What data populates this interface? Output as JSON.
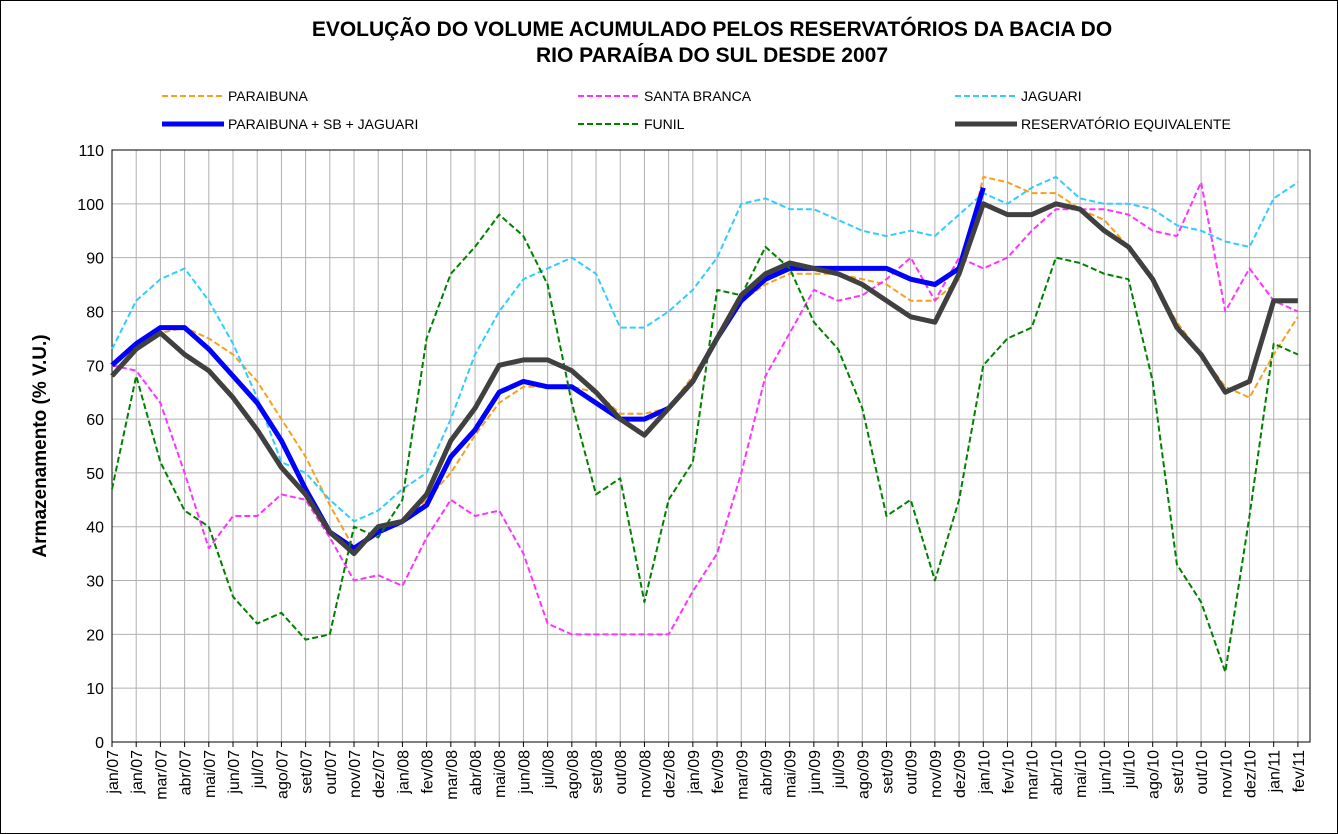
{
  "chart_data": {
    "type": "line",
    "title": [
      "EVOLUÇÃO DO VOLUME ACUMULADO PELOS RESERVATÓRIOS DA BACIA DO",
      "RIO PARAÍBA DO SUL DESDE 2007"
    ],
    "y_label": "Armazenamento (% V.U.)",
    "categories": [
      "jan/07",
      "jan/07",
      "mar/07",
      "abr/07",
      "mai/07",
      "jun/07",
      "jul/07",
      "ago/07",
      "set/07",
      "out/07",
      "nov/07",
      "dez/07",
      "jan/08",
      "fev/08",
      "mar/08",
      "abr/08",
      "mai/08",
      "jun/08",
      "jul/08",
      "ago/08",
      "set/08",
      "out/08",
      "nov/08",
      "dez/08",
      "jan/09",
      "fev/09",
      "mar/09",
      "abr/09",
      "mai/09",
      "jun/09",
      "jul/09",
      "ago/09",
      "set/09",
      "out/09",
      "nov/09",
      "dez/09",
      "jan/10",
      "fev/10",
      "mar/10",
      "abr/10",
      "mai/10",
      "jun/10",
      "jul/10",
      "ago/10",
      "set/10",
      "out/10",
      "nov/10",
      "dez/10",
      "jan/11",
      "fev/11"
    ],
    "ylim": [
      0,
      110
    ],
    "yticks": [
      0,
      10,
      20,
      30,
      40,
      50,
      60,
      70,
      80,
      90,
      100,
      110
    ],
    "grid": true,
    "series": [
      {
        "name": "PARAIBUNA",
        "color": "#f7a11a",
        "line_style": "dashed",
        "values": [
          70,
          74,
          76,
          77,
          75,
          72,
          67,
          60,
          53,
          44,
          36,
          39,
          41,
          45,
          50,
          57,
          63,
          66,
          66,
          66,
          65,
          61,
          61,
          62,
          68,
          75,
          82,
          85,
          87,
          87,
          87,
          86,
          85,
          82,
          82,
          86,
          105,
          104,
          102,
          102,
          99,
          97,
          92,
          86,
          78,
          72,
          66,
          64,
          72,
          79
        ]
      },
      {
        "name": "SANTA BRANCA",
        "color": "#ff33ff",
        "line_style": "dashed",
        "values": [
          70,
          69,
          63,
          50,
          36,
          42,
          42,
          46,
          45,
          38,
          30,
          31,
          29,
          38,
          45,
          42,
          43,
          35,
          22,
          20,
          20,
          20,
          20,
          20,
          28,
          35,
          50,
          68,
          76,
          84,
          82,
          83,
          86,
          90,
          82,
          90,
          88,
          90,
          95,
          99,
          99,
          99,
          98,
          95,
          94,
          104,
          80,
          88,
          82,
          80
        ]
      },
      {
        "name": "JAGUARI",
        "color": "#33ccff",
        "line_style": "dashed",
        "values": [
          73,
          82,
          86,
          88,
          82,
          74,
          64,
          52,
          50,
          45,
          41,
          43,
          47,
          50,
          60,
          72,
          80,
          86,
          88,
          90,
          87,
          77,
          77,
          80,
          84,
          90,
          100,
          101,
          99,
          99,
          97,
          95,
          94,
          95,
          94,
          98,
          102,
          100,
          103,
          105,
          101,
          100,
          100,
          99,
          96,
          95,
          93,
          92,
          101,
          104
        ]
      },
      {
        "name": "PARAIBUNA + SB + JAGUARI",
        "color": "#0000ff",
        "line_style": "solid",
        "values": [
          70,
          74,
          77,
          77,
          73,
          68,
          63,
          56,
          47,
          39,
          36,
          39,
          41,
          44,
          53,
          58,
          65,
          67,
          66,
          66,
          63,
          60,
          60,
          62,
          67,
          75,
          82,
          86,
          88,
          88,
          88,
          88,
          88,
          86,
          85,
          88,
          103,
          null,
          null,
          null,
          null,
          null,
          null,
          null,
          null,
          null,
          null,
          null,
          null,
          null
        ]
      },
      {
        "name": "FUNIL",
        "color": "#008000",
        "line_style": "dashed",
        "values": [
          47,
          68,
          52,
          43,
          40,
          27,
          22,
          24,
          19,
          20,
          40,
          38,
          45,
          75,
          87,
          92,
          98,
          94,
          85,
          63,
          46,
          49,
          26,
          45,
          52,
          84,
          83,
          92,
          88,
          78,
          73,
          62,
          42,
          45,
          30,
          45,
          70,
          75,
          77,
          90,
          89,
          87,
          86,
          67,
          33,
          26,
          13,
          42,
          74,
          72
        ]
      },
      {
        "name": "RESERVATÓRIO EQUIVALENTE",
        "color": "#404040",
        "line_style": "solid",
        "values": [
          68,
          73,
          76,
          72,
          69,
          64,
          58,
          51,
          46,
          39,
          35,
          40,
          41,
          46,
          56,
          62,
          70,
          71,
          71,
          69,
          65,
          60,
          57,
          62,
          67,
          75,
          83,
          87,
          89,
          88,
          87,
          85,
          82,
          79,
          78,
          87,
          100,
          98,
          98,
          100,
          99,
          95,
          92,
          86,
          77,
          72,
          65,
          67,
          82,
          82
        ]
      }
    ]
  }
}
